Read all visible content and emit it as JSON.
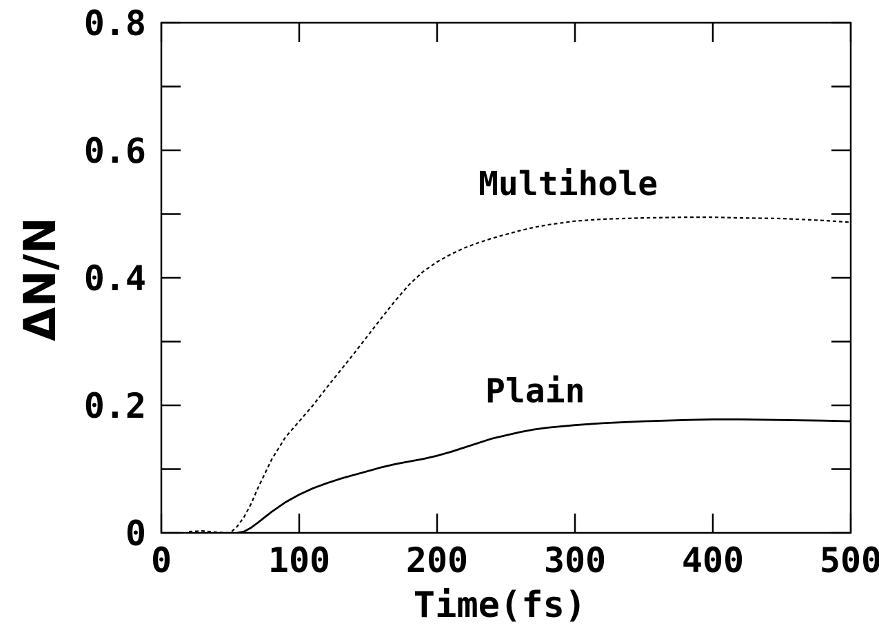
{
  "chart_data": {
    "type": "line",
    "title": "",
    "xlabel": "Time(fs)",
    "ylabel": "ΔN/N",
    "xlim": [
      0,
      500
    ],
    "ylim": [
      0,
      0.8
    ],
    "xticks": [
      0,
      100,
      200,
      300,
      400,
      500
    ],
    "xtick_labels": [
      "0",
      "100",
      "200",
      "300",
      "400",
      "500"
    ],
    "yticks": [
      0,
      0.2,
      0.4,
      0.6,
      0.8
    ],
    "ytick_labels": [
      "0",
      "0.2",
      "0.4",
      "0.6",
      "0.8"
    ],
    "grid": false,
    "legend": "none",
    "series": [
      {
        "name": "Multihole",
        "style": "dashed",
        "color": "#000000",
        "x": [
          20,
          30,
          40,
          50,
          55,
          60,
          65,
          70,
          80,
          90,
          100,
          110,
          120,
          130,
          140,
          150,
          160,
          170,
          180,
          190,
          200,
          210,
          220,
          230,
          240,
          250,
          260,
          270,
          280,
          300,
          320,
          350,
          380,
          400,
          420,
          450,
          480,
          500
        ],
        "y": [
          0.002,
          0.003,
          0.001,
          0.0,
          0.01,
          0.025,
          0.045,
          0.07,
          0.115,
          0.15,
          0.175,
          0.2,
          0.228,
          0.255,
          0.282,
          0.31,
          0.338,
          0.365,
          0.39,
          0.41,
          0.425,
          0.437,
          0.447,
          0.455,
          0.462,
          0.468,
          0.474,
          0.479,
          0.483,
          0.489,
          0.492,
          0.494,
          0.495,
          0.495,
          0.494,
          0.493,
          0.49,
          0.487
        ]
      },
      {
        "name": "Plain",
        "style": "solid",
        "color": "#000000",
        "x": [
          55,
          60,
          65,
          70,
          80,
          90,
          100,
          110,
          120,
          130,
          140,
          150,
          160,
          170,
          180,
          190,
          200,
          210,
          220,
          230,
          240,
          250,
          260,
          270,
          280,
          300,
          320,
          350,
          380,
          400,
          420,
          450,
          480,
          500
        ],
        "y": [
          0.0,
          0.002,
          0.008,
          0.016,
          0.033,
          0.048,
          0.06,
          0.07,
          0.078,
          0.085,
          0.091,
          0.097,
          0.103,
          0.108,
          0.112,
          0.116,
          0.121,
          0.127,
          0.134,
          0.141,
          0.148,
          0.153,
          0.158,
          0.162,
          0.165,
          0.169,
          0.172,
          0.175,
          0.177,
          0.178,
          0.178,
          0.177,
          0.176,
          0.175
        ]
      }
    ],
    "annotations": [
      {
        "text": "Multihole",
        "x": 230,
        "y": 0.53
      },
      {
        "text": "Plain",
        "x": 235,
        "y": 0.205
      }
    ]
  }
}
